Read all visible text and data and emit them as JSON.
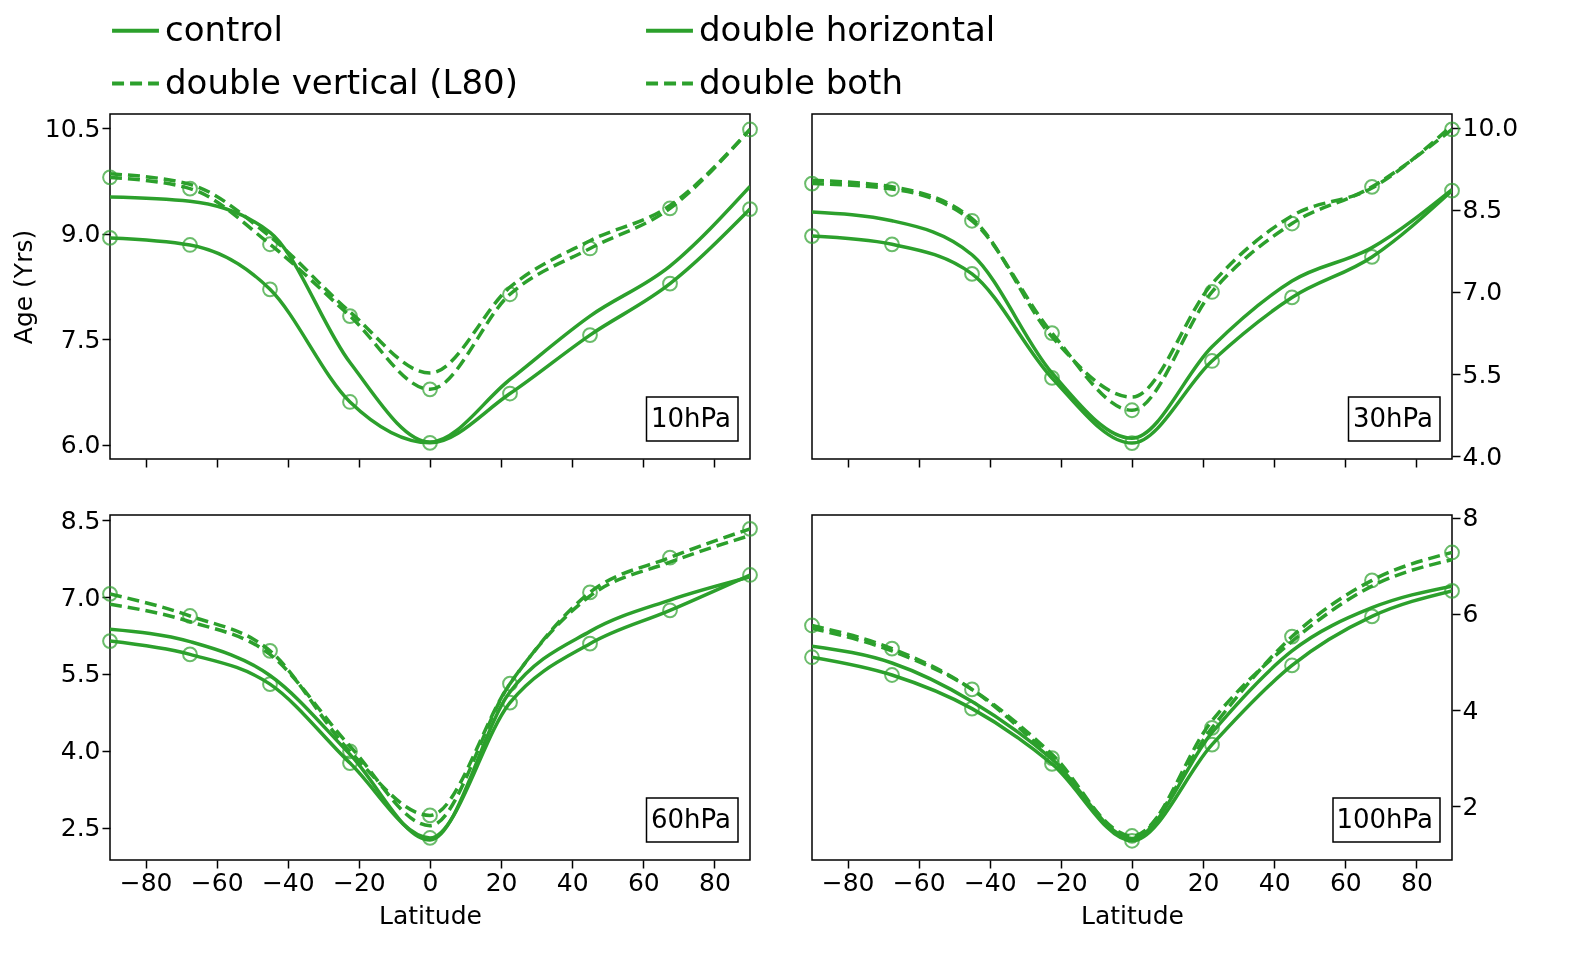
{
  "chart_data": [
    {
      "type": "line",
      "annotations": [
        "10hPa"
      ],
      "ylabel": "Age (Yrs)",
      "legend": "top",
      "tick_labels": "y",
      "x": [
        -90,
        -67.5,
        -45,
        -22.5,
        0,
        22.5,
        45,
        67.5,
        90
      ],
      "xlim": [
        -90,
        90
      ],
      "xticks": [
        {
          "value": -80,
          "label": "−80"
        },
        {
          "value": -60,
          "label": "−60"
        },
        {
          "value": -40,
          "label": "−40"
        },
        {
          "value": -20,
          "label": "−20"
        },
        0,
        20,
        40,
        60,
        80
      ],
      "ylim": [
        5.8,
        10.7
      ],
      "yticks": [
        {
          "value": 6,
          "label": "6.0"
        },
        7.5,
        {
          "value": 9,
          "label": "9.0"
        },
        10.5
      ],
      "series": [
        {
          "name": "control",
          "color": "#2ca02c",
          "line_style": "solid",
          "marker": "none",
          "values": [
            9.52,
            9.46,
            9.02,
            7.17,
            6.04,
            6.93,
            7.83,
            8.54,
            9.67
          ]
        },
        {
          "name": "double horizontal",
          "color": "#2ca02c",
          "line_style": "solid",
          "marker": "circle",
          "values": [
            8.94,
            8.84,
            8.21,
            6.61,
            6.03,
            6.73,
            7.56,
            8.29,
            9.35
          ]
        },
        {
          "name": "double vertical (L80)",
          "color": "#2ca02c",
          "line_style": "dashed",
          "marker": "none",
          "values": [
            9.85,
            9.7,
            8.96,
            7.89,
            7.02,
            8.24,
            8.9,
            9.4,
            10.48
          ]
        },
        {
          "name": "double both",
          "color": "#2ca02c",
          "line_style": "dashed",
          "marker": "circle",
          "values": [
            9.8,
            9.64,
            8.85,
            7.83,
            6.79,
            8.14,
            8.79,
            9.36,
            10.48
          ]
        }
      ]
    },
    {
      "type": "line",
      "annotations": [
        "30hPa"
      ],
      "tick_labels": "y",
      "x": [
        -90,
        -67.5,
        -45,
        -22.5,
        0,
        22.5,
        45,
        67.5,
        90
      ],
      "xlim": [
        -90,
        90
      ],
      "xticks": [
        {
          "value": -80,
          "label": "−80"
        },
        {
          "value": -60,
          "label": "−60"
        },
        {
          "value": -40,
          "label": "−40"
        },
        {
          "value": -20,
          "label": "−20"
        },
        0,
        20,
        40,
        60,
        80
      ],
      "y2lim": [
        3.95,
        10.25
      ],
      "y2ticks": [
        {
          "value": 4,
          "label": "4.0"
        },
        5.5,
        {
          "value": 7,
          "label": "7.0"
        },
        8.5,
        {
          "value": 10,
          "label": "10.0"
        }
      ],
      "series": [
        {
          "name": "control",
          "color": "#2ca02c",
          "axis": "y2",
          "line_style": "solid",
          "marker": "none",
          "values": [
            8.46,
            8.3,
            7.68,
            5.52,
            4.33,
            6.0,
            7.2,
            7.81,
            8.87
          ]
        },
        {
          "name": "double horizontal",
          "color": "#2ca02c",
          "axis": "y2",
          "line_style": "solid",
          "marker": "circle",
          "values": [
            8.02,
            7.87,
            7.33,
            5.43,
            4.24,
            5.74,
            6.9,
            7.64,
            8.85
          ]
        },
        {
          "name": "double vertical (L80)",
          "color": "#2ca02c",
          "axis": "y2",
          "line_style": "dashed",
          "marker": "none",
          "values": [
            9.04,
            8.92,
            8.34,
            6.18,
            5.08,
            7.15,
            8.39,
            8.9,
            10.04
          ]
        },
        {
          "name": "double both",
          "color": "#2ca02c",
          "axis": "y2",
          "line_style": "dashed",
          "marker": "circle",
          "values": [
            8.98,
            8.88,
            8.3,
            6.25,
            4.84,
            7.0,
            8.25,
            8.92,
            9.97
          ]
        }
      ]
    },
    {
      "type": "line",
      "annotations": [
        "60hPa"
      ],
      "xlabel": "Latitude",
      "x": [
        -90,
        -67.5,
        -45,
        -22.5,
        0,
        22.5,
        45,
        67.5,
        90
      ],
      "xlim": [
        -90,
        90
      ],
      "xticks": [
        {
          "value": -80,
          "label": "−80"
        },
        {
          "value": -60,
          "label": "−60"
        },
        {
          "value": -40,
          "label": "−40"
        },
        {
          "value": -20,
          "label": "−20"
        },
        0,
        20,
        40,
        60,
        80
      ],
      "ylim": [
        1.87,
        8.6
      ],
      "yticks": [
        2.5,
        {
          "value": 4,
          "label": "4.0"
        },
        5.5,
        {
          "value": 7,
          "label": "7.0"
        },
        8.5
      ],
      "series": [
        {
          "name": "control",
          "color": "#2ca02c",
          "line_style": "solid",
          "marker": "none",
          "values": [
            6.37,
            6.13,
            5.47,
            3.93,
            2.26,
            5.15,
            6.33,
            6.94,
            7.39
          ]
        },
        {
          "name": "double horizontal",
          "color": "#2ca02c",
          "line_style": "solid",
          "marker": "circle",
          "values": [
            6.14,
            5.88,
            5.3,
            3.76,
            2.3,
            4.94,
            6.09,
            6.74,
            7.43
          ]
        },
        {
          "name": "double vertical (L80)",
          "color": "#2ca02c",
          "line_style": "dashed",
          "marker": "none",
          "values": [
            6.86,
            6.52,
            5.88,
            4.09,
            2.54,
            5.31,
            7.02,
            7.68,
            8.2
          ]
        },
        {
          "name": "double both",
          "color": "#2ca02c",
          "line_style": "dashed",
          "marker": "circle",
          "values": [
            7.06,
            6.63,
            5.95,
            3.99,
            2.74,
            5.31,
            7.09,
            7.77,
            8.33
          ]
        }
      ]
    },
    {
      "type": "line",
      "annotations": [
        "100hPa"
      ],
      "xlabel": "Latitude",
      "x": [
        -90,
        -67.5,
        -45,
        -22.5,
        0,
        22.5,
        45,
        67.5,
        90
      ],
      "xlim": [
        -90,
        90
      ],
      "xticks": [
        {
          "value": -80,
          "label": "−80"
        },
        {
          "value": -60,
          "label": "−60"
        },
        {
          "value": -40,
          "label": "−40"
        },
        {
          "value": -20,
          "label": "−20"
        },
        0,
        20,
        40,
        60,
        80
      ],
      "y2lim": [
        0.88,
        8.06
      ],
      "y2ticks": [
        2,
        4,
        6,
        8
      ],
      "series": [
        {
          "name": "control",
          "color": "#2ca02c",
          "axis": "y2",
          "line_style": "solid",
          "marker": "none",
          "values": [
            5.33,
            4.98,
            4.18,
            2.98,
            1.33,
            3.53,
            5.23,
            6.13,
            6.58
          ]
        },
        {
          "name": "double horizontal",
          "color": "#2ca02c",
          "axis": "y2",
          "line_style": "solid",
          "marker": "circle",
          "values": [
            5.1,
            4.73,
            4.03,
            2.88,
            1.28,
            3.28,
            4.93,
            5.95,
            6.48
          ]
        },
        {
          "name": "double vertical (L80)",
          "color": "#2ca02c",
          "axis": "y2",
          "line_style": "dashed",
          "marker": "none",
          "values": [
            5.7,
            5.23,
            4.43,
            3.08,
            1.33,
            3.78,
            5.43,
            6.58,
            7.13
          ]
        },
        {
          "name": "double both",
          "color": "#2ca02c",
          "axis": "y2",
          "line_style": "dashed",
          "marker": "circle",
          "values": [
            5.76,
            5.28,
            4.43,
            3.0,
            1.38,
            3.63,
            5.53,
            6.7,
            7.28
          ]
        }
      ]
    }
  ]
}
